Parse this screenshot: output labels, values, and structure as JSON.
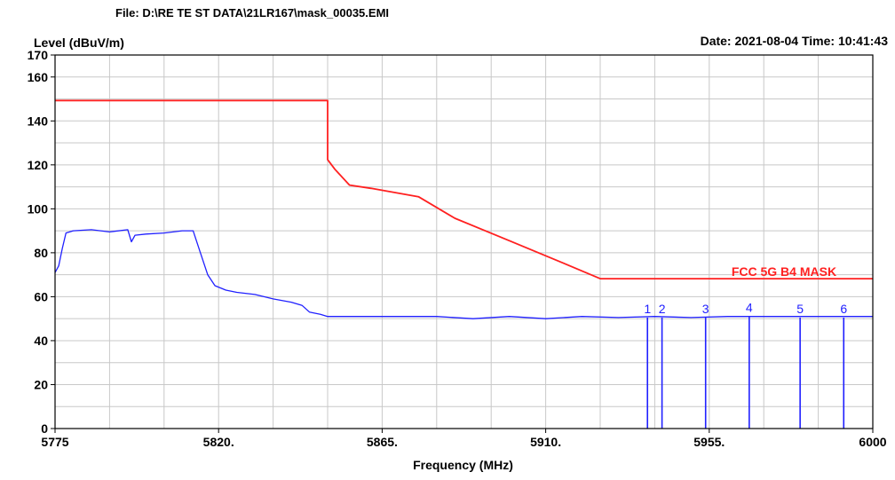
{
  "header": {
    "file_label": "File: D:\\RE TE ST DATA\\21LR167\\mask_00035.EMI",
    "level_label": "Level (dBuV/m)",
    "date_label": "Date: 2021-08-04  Time: 10:41:43"
  },
  "colors": {
    "mask": "#ff2020",
    "trace": "#2020ff",
    "grid": "#c8c8c8",
    "axis": "#000000"
  },
  "chart_data": {
    "type": "line",
    "xlabel": "Frequency (MHz)",
    "ylabel": "Level (dBuV/m)",
    "xlim": [
      5775,
      6000
    ],
    "ylim": [
      0,
      170
    ],
    "grid": true,
    "x_ticks": [
      5775,
      5820,
      5865,
      5910,
      5955,
      6000
    ],
    "x_tick_labels": [
      "5775",
      "5820.",
      "5865.",
      "5910.",
      "5955.",
      "6000"
    ],
    "y_ticks": [
      0,
      20,
      40,
      60,
      80,
      100,
      120,
      140,
      160,
      170
    ],
    "y_tick_labels": [
      "0",
      "20",
      "40",
      "60",
      "80",
      "100",
      "120",
      "140",
      "160",
      "170"
    ],
    "series": [
      {
        "name": "FCC 5G B4 MASK",
        "role": "limit",
        "x": [
          5775,
          5850,
          5850,
          5852,
          5856,
          5862,
          5875,
          5885,
          5900,
          5915,
          5925,
          6000
        ],
        "y": [
          149.3,
          149.3,
          122.4,
          118.0,
          110.8,
          109.3,
          105.5,
          95.7,
          85.5,
          75.2,
          68.2,
          68.2
        ]
      },
      {
        "role": "measured",
        "x": [
          5775,
          5776,
          5777,
          5778,
          5780,
          5785,
          5790,
          5795,
          5796,
          5797,
          5800,
          5805,
          5810,
          5813,
          5815,
          5817,
          5819,
          5822,
          5825,
          5830,
          5835,
          5840,
          5843,
          5845,
          5848,
          5850,
          5860,
          5870,
          5880,
          5890,
          5900,
          5910,
          5920,
          5930,
          5940,
          5950,
          5960,
          5970,
          5980,
          5990,
          6000
        ],
        "y": [
          71,
          74,
          82,
          89,
          90,
          90.5,
          89.5,
          90.5,
          85,
          88,
          88.5,
          89,
          90,
          90,
          80,
          70,
          65,
          63,
          62,
          61,
          59,
          57.5,
          56,
          53,
          52,
          51,
          51,
          51,
          51,
          50,
          51,
          50,
          51,
          50.5,
          51,
          50.5,
          51,
          51,
          51,
          51,
          51
        ]
      }
    ],
    "markers": [
      {
        "label": "1",
        "x": 5938,
        "y": 50.5
      },
      {
        "label": "2",
        "x": 5942,
        "y": 50.5
      },
      {
        "label": "3",
        "x": 5954,
        "y": 50.5
      },
      {
        "label": "4",
        "x": 5966,
        "y": 51.0
      },
      {
        "label": "5",
        "x": 5980,
        "y": 50.5
      },
      {
        "label": "6",
        "x": 5992,
        "y": 50.5
      }
    ],
    "annotations": [
      {
        "text": "FCC 5G B4 MASK",
        "x": 5990,
        "y": 71,
        "color": "#ff2020"
      }
    ]
  }
}
